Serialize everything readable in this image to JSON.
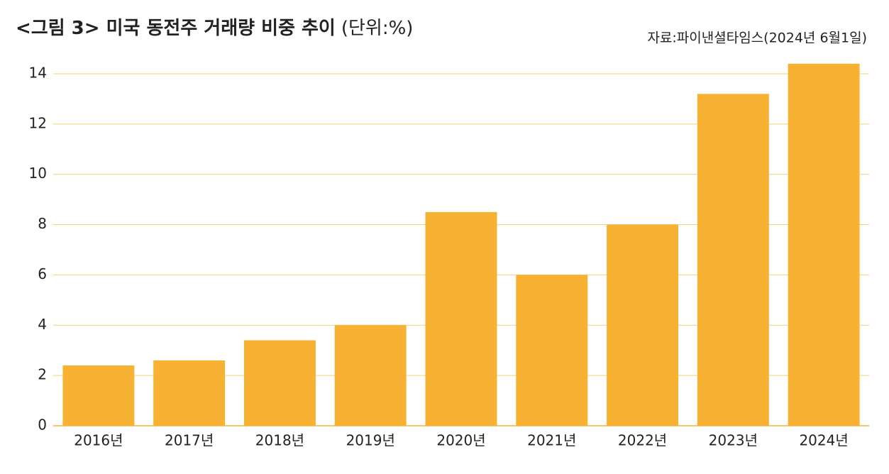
{
  "chart_data": {
    "type": "bar",
    "title": "<그림 3> 미국 동전주 거래량 비중 추이",
    "unit": "(단위:%)",
    "source": "자료:파이낸셜타임스(2024년 6월1일)",
    "categories": [
      "2016년",
      "2017년",
      "2018년",
      "2019년",
      "2020년",
      "2021년",
      "2022년",
      "2023년",
      "2024년"
    ],
    "values": [
      2.4,
      2.6,
      3.4,
      4.0,
      8.5,
      6.0,
      8.0,
      13.2,
      14.4
    ],
    "color": "#f7b233",
    "grid_color": "#f5cf7c",
    "ylim": [
      0,
      14.5
    ],
    "yticks": [
      0,
      2,
      4,
      6,
      8,
      10,
      12,
      14
    ],
    "grid": true
  }
}
